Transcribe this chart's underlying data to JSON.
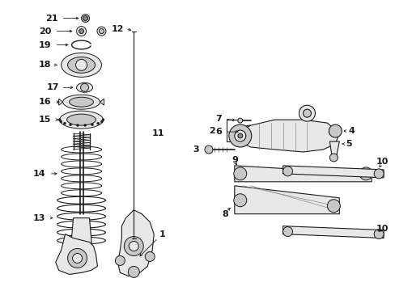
{
  "bg_color": "#ffffff",
  "fig_width": 4.89,
  "fig_height": 3.6,
  "dpi": 100,
  "line_color": "#1a1a1a",
  "gray_fill": "#c8c8c8",
  "light_fill": "#e8e8e8",
  "dark_fill": "#888888"
}
